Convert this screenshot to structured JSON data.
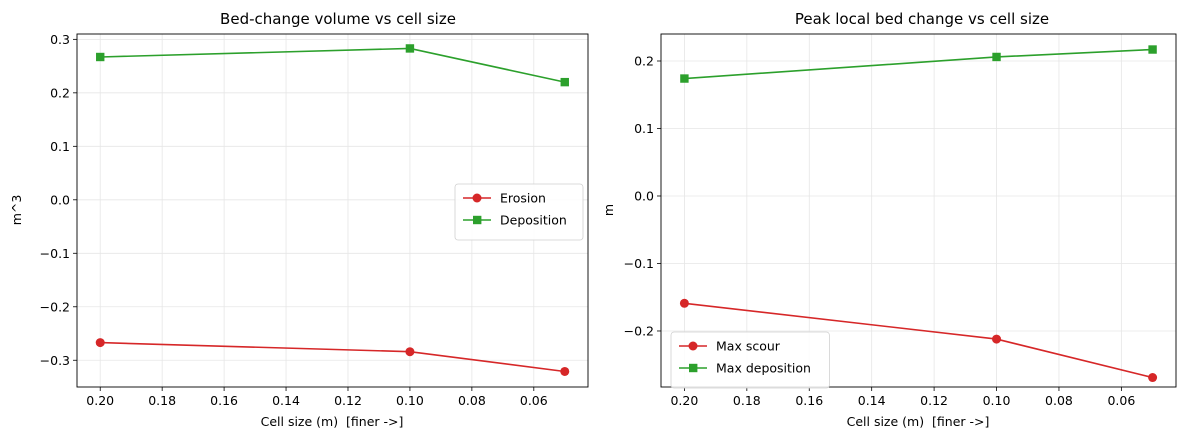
{
  "chart_data": [
    {
      "type": "line",
      "title": "Bed-change volume vs cell size",
      "xlabel": "Cell size (m)  [finer ->]",
      "ylabel": "m^3",
      "x": [
        0.2,
        0.1,
        0.05
      ],
      "x_inverted": true,
      "xlim": [
        0.2,
        0.05
      ],
      "ylim": [
        -0.35,
        0.31
      ],
      "xticks": [
        0.2,
        0.18,
        0.16,
        0.14,
        0.12,
        0.1,
        0.08,
        0.06
      ],
      "xtick_labels": [
        "0.20",
        "0.18",
        "0.16",
        "0.14",
        "0.12",
        "0.10",
        "0.08",
        "0.06"
      ],
      "yticks": [
        -0.3,
        -0.2,
        -0.1,
        0.0,
        0.1,
        0.2,
        0.3
      ],
      "ytick_labels": [
        "−0.3",
        "−0.2",
        "−0.1",
        "0.0",
        "0.1",
        "0.2",
        "0.3"
      ],
      "grid": true,
      "legend_position": "center-right",
      "series": [
        {
          "name": "Erosion",
          "values": [
            -0.267,
            -0.284,
            -0.321
          ],
          "color": "#d62728",
          "marker": "circle"
        },
        {
          "name": "Deposition",
          "values": [
            0.267,
            0.283,
            0.22
          ],
          "color": "#2ca02c",
          "marker": "square"
        }
      ]
    },
    {
      "type": "line",
      "title": "Peak local bed change vs cell size",
      "xlabel": "Cell size (m)  [finer ->]",
      "ylabel": "m",
      "x": [
        0.2,
        0.1,
        0.05
      ],
      "x_inverted": true,
      "xlim": [
        0.2,
        0.05
      ],
      "ylim": [
        -0.283,
        0.24
      ],
      "xticks": [
        0.2,
        0.18,
        0.16,
        0.14,
        0.12,
        0.1,
        0.08,
        0.06
      ],
      "xtick_labels": [
        "0.20",
        "0.18",
        "0.16",
        "0.14",
        "0.12",
        "0.10",
        "0.08",
        "0.06"
      ],
      "yticks": [
        -0.2,
        -0.1,
        0.0,
        0.1,
        0.2
      ],
      "ytick_labels": [
        "−0.2",
        "−0.1",
        "0.0",
        "0.1",
        "0.2"
      ],
      "grid": true,
      "legend_position": "lower-left",
      "series": [
        {
          "name": "Max scour",
          "values": [
            -0.159,
            -0.212,
            -0.269
          ],
          "color": "#d62728",
          "marker": "circle"
        },
        {
          "name": "Max deposition",
          "values": [
            0.174,
            0.206,
            0.217
          ],
          "color": "#2ca02c",
          "marker": "square"
        }
      ]
    }
  ]
}
